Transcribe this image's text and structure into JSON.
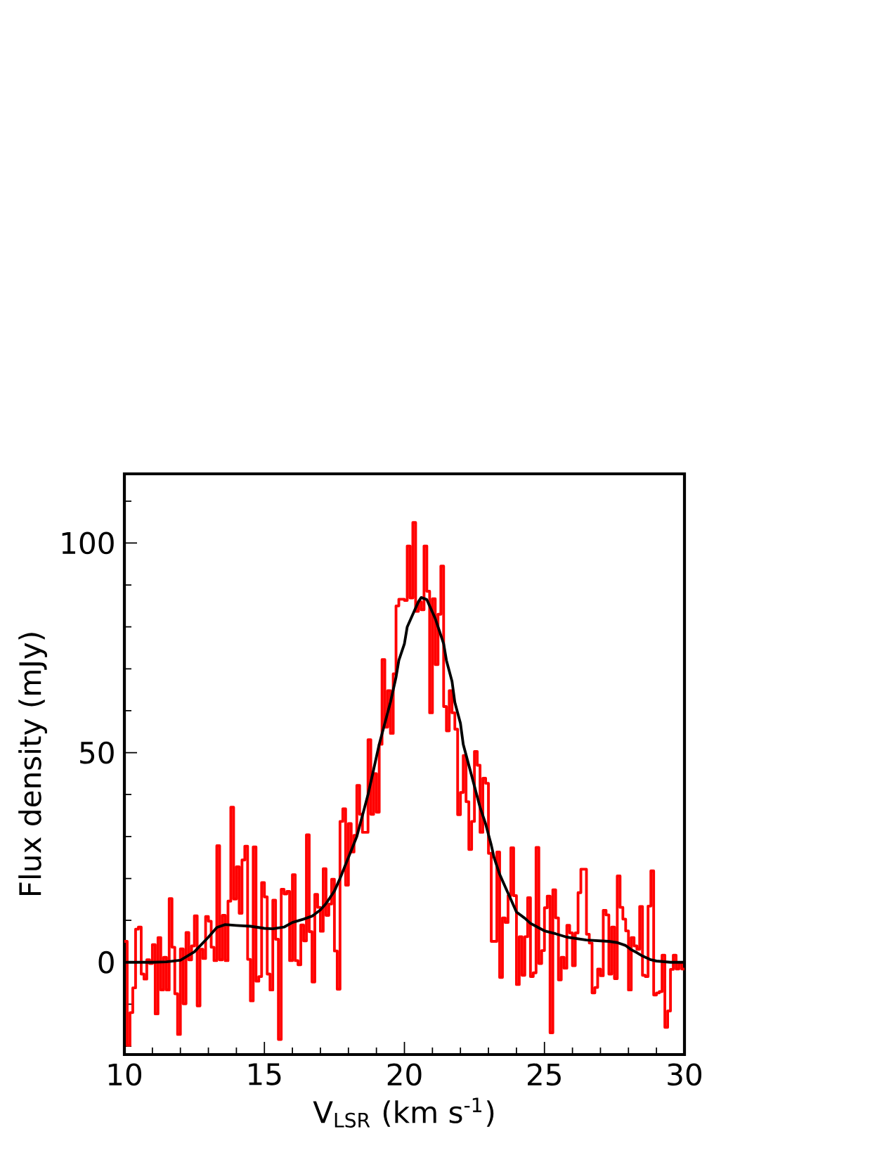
{
  "chart_data": {
    "type": "histogram",
    "xlabel": "V$_{LSR}$ (km s$^{-1}$)",
    "ylabel": "Flux density (mJy)",
    "bins": [
      10,
      10.1,
      10.2,
      10.3,
      10.4,
      10.5,
      10.6,
      10.7,
      10.8,
      10.9,
      11,
      11.1,
      11.2,
      11.3,
      11.4,
      11.5,
      11.6,
      11.7,
      11.8,
      11.9,
      12,
      12.1,
      12.2,
      12.3,
      12.4,
      12.5,
      12.6,
      12.7,
      12.8,
      12.9,
      13,
      13.1,
      13.2,
      13.3,
      13.4,
      13.5,
      13.6,
      13.7,
      13.8,
      13.9,
      14,
      14.1,
      14.2,
      14.3,
      14.4,
      14.5,
      14.6,
      14.7,
      14.8,
      14.9,
      15,
      15.1,
      15.2,
      15.3,
      15.4,
      15.5,
      15.6,
      15.7,
      15.8,
      15.9,
      16,
      16.1,
      16.2,
      16.3,
      16.4,
      16.5,
      16.6,
      16.7,
      16.8,
      16.9,
      17,
      17.1,
      17.2,
      17.3,
      17.4,
      17.5,
      17.6,
      17.7,
      17.8,
      17.9,
      18,
      18.1,
      18.2,
      18.3,
      18.4,
      18.5,
      18.6,
      18.7,
      18.8,
      18.9,
      19,
      19.1,
      19.2,
      19.3,
      19.4,
      19.5,
      19.6,
      19.7,
      19.8,
      19.9,
      20,
      20.1,
      20.2,
      20.3,
      20.4,
      20.5,
      20.6,
      20.7,
      20.8,
      20.9,
      21,
      21.1,
      21.2,
      21.3,
      21.4,
      21.5,
      21.6,
      21.7,
      21.8,
      21.9,
      22,
      22.1,
      22.2,
      22.3,
      22.4,
      22.5,
      22.6,
      22.7,
      22.8,
      22.9,
      23,
      23.1,
      23.2,
      23.3,
      23.4,
      23.5,
      23.6,
      23.7,
      23.8,
      23.9,
      24,
      24.1,
      24.2,
      24.3,
      24.4,
      24.5,
      24.6,
      24.7,
      24.8,
      24.9,
      25,
      25.1,
      25.2,
      25.3,
      25.4,
      25.5,
      25.6,
      25.7,
      25.8,
      25.9,
      26,
      26.1,
      26.2,
      26.3,
      26.4,
      26.5,
      26.6,
      26.7,
      26.8,
      26.9,
      27,
      27.1,
      27.2,
      27.3,
      27.4,
      27.5,
      27.6,
      27.7,
      27.8,
      27.9,
      28,
      28.1,
      28.2,
      28.3,
      28.4,
      28.5,
      28.6,
      28.7,
      28.8,
      28.9,
      29,
      29.1,
      29.2,
      29.3,
      29.4,
      29.5,
      29.6,
      29.7,
      29.8,
      29.9,
      30
    ],
    "series": [
      {
        "color": "#ff0000",
        "values": [
          5.0,
          -19.8,
          -12.0,
          -6.1,
          7.9,
          8.4,
          -2.8,
          -4.0,
          0.6,
          -0.3,
          4.2,
          -12.3,
          5.9,
          -6.6,
          1.2,
          -6.6,
          15.2,
          3.6,
          -7.5,
          -17.2,
          3.2,
          -9.9,
          7.1,
          0.6,
          3.9,
          11.1,
          -10.4,
          3.1,
          0.9,
          10.9,
          9.8,
          3.6,
          0.4,
          27.8,
          0.6,
          11.2,
          0.4,
          14.6,
          37.0,
          15.1,
          22.8,
          11.7,
          24.4,
          27.7,
          0.7,
          -9.2,
          27.5,
          -4.5,
          -3.4,
          19.0,
          15.6,
          -2.8,
          -6.6,
          14.8,
          5.5,
          -18.4,
          17.4,
          16.3,
          16.9,
          0.4,
          20.9,
          0.4,
          -0.6,
          8.9,
          5.1,
          30.4,
          7.3,
          -4.7,
          16.2,
          13.1,
          7.4,
          22.3,
          11.2,
          13.9,
          19.8,
          2.7,
          -6.4,
          33.6,
          36.6,
          18.4,
          33.1,
          26.3,
          30.3,
          42.2,
          35.3,
          31,
          31,
          53.1,
          35.3,
          45.0,
          35.8,
          52.0,
          72.2,
          56.1,
          64.8,
          54.6,
          68.8,
          85.0,
          86.6,
          86.6,
          86.3,
          99.3,
          86.9,
          104.9,
          83.7,
          86.0,
          84.1,
          99.3,
          88.5,
          59.5,
          86.7,
          71.0,
          83.0,
          94.5,
          61.0,
          55.2,
          64.8,
          59.5,
          55.6,
          35.2,
          40.5,
          49.3,
          38.3,
          26.9,
          33.6,
          50.3,
          47.0,
          31.0,
          43.9,
          42.7,
          26.0,
          5.0,
          5.0,
          26.3,
          -3.6,
          10.6,
          9.5,
          15.9,
          27.3,
          15.9,
          -5.3,
          6.1,
          -3.1,
          6.1,
          15.4,
          -3.4,
          -2.5,
          27.4,
          -0.3,
          2.8,
          13.0,
          15.8,
          -16.8,
          17.3,
          10.6,
          -4.2,
          1.2,
          -1.4,
          8.8,
          7.0,
          -0.8,
          7.0,
          16.6,
          22.2,
          22.2,
          6.7,
          4.6,
          -7.3,
          -6.0,
          -1.6,
          -3.2,
          12.4,
          11.3,
          -2.8,
          8.4,
          -3.9,
          20.6,
          13.1,
          10.3,
          7.5,
          -6.6,
          5.9,
          3.9,
          3.1,
          13.3,
          -3.1,
          -3.4,
          13.4,
          21.8,
          -7.8,
          -7.3,
          -7.0,
          1.7,
          -15.5,
          -11.6,
          -1.7,
          1.7,
          -1.6,
          -0.3,
          -1.6
        ]
      },
      {
        "type": "line",
        "color": "#000000",
        "x": [
          10,
          11,
          11.5,
          12,
          12.5,
          13,
          13.3,
          13.6,
          14,
          14.5,
          15,
          15.3,
          15.7,
          16,
          16.4,
          16.7,
          17,
          17.2,
          17.5,
          17.7,
          18,
          18.3,
          18.5,
          18.7,
          18.9,
          19.1,
          19.3,
          19.5,
          19.7,
          19.8,
          20,
          20.1,
          20.3,
          20.5,
          20.6,
          20.8,
          20.9,
          21.1,
          21.2,
          21.4,
          21.5,
          21.7,
          21.8,
          22,
          22.1,
          22.3,
          22.5,
          22.7,
          22.9,
          23.1,
          23.2,
          23.4,
          23.6,
          23.8,
          24,
          24.3,
          24.5,
          25,
          25.4,
          25.8,
          26.5,
          27.3,
          27.6,
          27.9,
          28.1,
          28.3,
          28.5,
          28.8,
          29,
          29.5,
          30
        ],
        "values": [
          0,
          0,
          0.1,
          0.5,
          2.5,
          6,
          8.3,
          9,
          8.8,
          8.6,
          8.1,
          8.0,
          8.4,
          9.5,
          10.3,
          11,
          12.5,
          14,
          17,
          20,
          25,
          30,
          35,
          40,
          46,
          52,
          57,
          62,
          68,
          72,
          76,
          80,
          83,
          86,
          87,
          86.5,
          85,
          82,
          80,
          76,
          72,
          67,
          62,
          57,
          52,
          47,
          42,
          37,
          33,
          28,
          25,
          21,
          18,
          15,
          12,
          10.5,
          9.3,
          7.5,
          6.8,
          6,
          5.3,
          5,
          4.7,
          4,
          3,
          2.3,
          1.5,
          0.6,
          0.3,
          0,
          0
        ]
      }
    ],
    "xlim": [
      10,
      30
    ],
    "xticks": [
      10,
      {
        "value": 11,
        "label": null
      },
      {
        "value": 12,
        "label": null
      },
      {
        "value": 13,
        "label": null
      },
      {
        "value": 14,
        "label": null
      },
      15,
      {
        "value": 16,
        "label": null
      },
      {
        "value": 17,
        "label": null
      },
      {
        "value": 18,
        "label": null
      },
      {
        "value": 19,
        "label": null
      },
      20,
      {
        "value": 21,
        "label": null
      },
      {
        "value": 22,
        "label": null
      },
      {
        "value": 23,
        "label": null
      },
      {
        "value": 24,
        "label": null
      },
      25,
      {
        "value": 26,
        "label": null
      },
      {
        "value": 27,
        "label": null
      },
      {
        "value": 28,
        "label": null
      },
      {
        "value": 29,
        "label": null
      },
      30
    ],
    "ylim": [
      -22,
      116.5
    ],
    "yticks": [
      {
        "value": -20,
        "label": null
      },
      {
        "value": -10,
        "label": null
      },
      0,
      {
        "value": 10,
        "label": null
      },
      {
        "value": 20,
        "label": null
      },
      {
        "value": 30,
        "label": null
      },
      {
        "value": 40,
        "label": null
      },
      50,
      {
        "value": 60,
        "label": null
      },
      {
        "value": 70,
        "label": null
      },
      {
        "value": 80,
        "label": null
      },
      {
        "value": 90,
        "label": null
      },
      100,
      {
        "value": 110,
        "label": null
      }
    ]
  }
}
